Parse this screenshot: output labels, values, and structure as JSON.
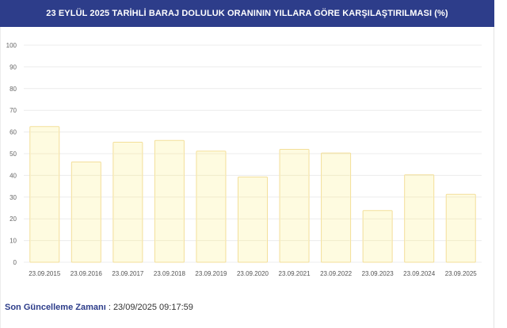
{
  "chart_data": {
    "type": "bar",
    "title": "23 EYLÜL 2025 TARİHLİ BARAJ DOLULUK ORANININ YILLARA GÖRE KARŞILAŞTIRILMASI (%)",
    "xlabel": "",
    "ylabel": "",
    "ylim": [
      0,
      100
    ],
    "yticks": [
      "0",
      "10",
      "20",
      "30",
      "40",
      "50",
      "60",
      "70",
      "80",
      "90",
      "100"
    ],
    "categories": [
      "23.09.2015",
      "23.09.2016",
      "23.09.2017",
      "23.09.2018",
      "23.09.2019",
      "23.09.2020",
      "23.09.2021",
      "23.09.2022",
      "23.09.2023",
      "23.09.2024",
      "23.09.2025"
    ],
    "values": [
      62.5,
      46.2,
      55.3,
      56.1,
      51.2,
      39.3,
      52.0,
      50.3,
      23.8,
      40.3,
      31.3
    ],
    "grid": true,
    "bar_fill": "#fefbe0",
    "bar_stroke": "#f3df9a",
    "grid_color": "#ececec"
  },
  "footer": {
    "label": "Son Güncelleme Zamanı",
    "separator": " : ",
    "value": "23/09/2025 09:17:59"
  },
  "colors": {
    "header_bg": "#2d3d8a",
    "header_text": "#ffffff"
  }
}
